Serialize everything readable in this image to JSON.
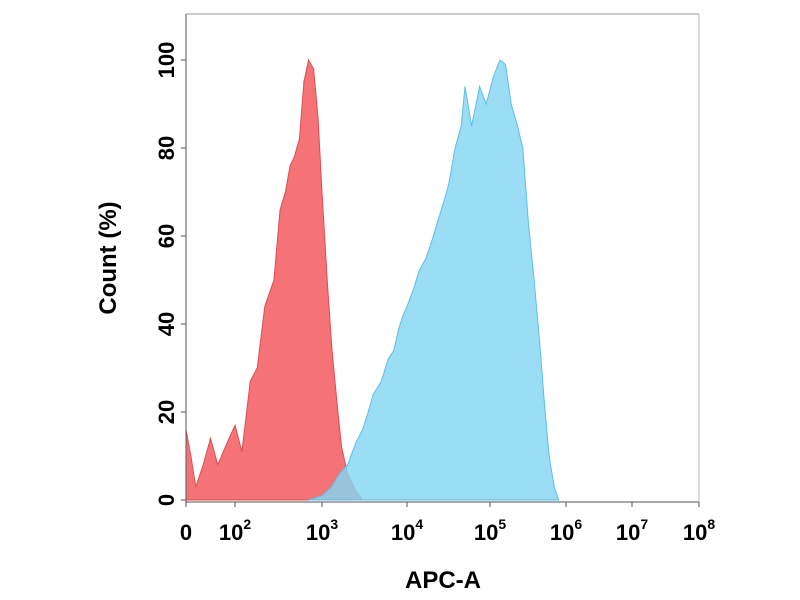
{
  "chart_data": {
    "type": "area",
    "title": "",
    "xlabel": "APC-A",
    "ylabel": "Count  (%)",
    "x_scale": "biexponential (linear near 0, logarithmic above 10^2)",
    "xlim": [
      0,
      100000000
    ],
    "ylim": [
      0,
      110
    ],
    "grid": false,
    "legend": "none",
    "x_ticks": [
      {
        "value": 0,
        "base": "0",
        "exp": ""
      },
      {
        "value": 100,
        "base": "10",
        "exp": "2"
      },
      {
        "value": 1000,
        "base": "10",
        "exp": "3"
      },
      {
        "value": 10000,
        "base": "10",
        "exp": "4"
      },
      {
        "value": 100000,
        "base": "10",
        "exp": "5"
      },
      {
        "value": 1000000,
        "base": "10",
        "exp": "6"
      },
      {
        "value": 10000000,
        "base": "10",
        "exp": "7"
      },
      {
        "value": 100000000,
        "base": "10",
        "exp": "8"
      }
    ],
    "y_ticks": [
      0,
      20,
      40,
      60,
      80,
      100
    ],
    "series": [
      {
        "color": "#f46a6f",
        "points": [
          [
            0,
            16
          ],
          [
            10,
            10
          ],
          [
            20,
            3
          ],
          [
            35,
            8
          ],
          [
            50,
            14
          ],
          [
            65,
            8
          ],
          [
            80,
            12
          ],
          [
            100,
            17
          ],
          [
            120,
            11
          ],
          [
            150,
            27
          ],
          [
            180,
            30
          ],
          [
            220,
            44
          ],
          [
            280,
            50
          ],
          [
            330,
            66
          ],
          [
            380,
            70
          ],
          [
            430,
            76
          ],
          [
            480,
            78
          ],
          [
            550,
            82
          ],
          [
            620,
            95
          ],
          [
            700,
            100
          ],
          [
            800,
            98
          ],
          [
            900,
            87
          ],
          [
            1000,
            70
          ],
          [
            1150,
            50
          ],
          [
            1300,
            35
          ],
          [
            1500,
            22
          ],
          [
            1700,
            12
          ],
          [
            2000,
            6
          ],
          [
            2500,
            2
          ],
          [
            3000,
            0
          ]
        ]
      },
      {
        "color": "#85d6f2",
        "points": [
          [
            700,
            0
          ],
          [
            1000,
            1
          ],
          [
            1300,
            3
          ],
          [
            1600,
            6
          ],
          [
            2000,
            8
          ],
          [
            2500,
            13
          ],
          [
            3000,
            16
          ],
          [
            3500,
            20
          ],
          [
            4000,
            24
          ],
          [
            5000,
            27
          ],
          [
            6000,
            32
          ],
          [
            7000,
            34
          ],
          [
            8000,
            39
          ],
          [
            9000,
            42
          ],
          [
            10000,
            44
          ],
          [
            12000,
            48
          ],
          [
            14000,
            52
          ],
          [
            17000,
            55
          ],
          [
            20000,
            59
          ],
          [
            24000,
            64
          ],
          [
            28000,
            68
          ],
          [
            32000,
            72
          ],
          [
            38000,
            80
          ],
          [
            45000,
            85
          ],
          [
            50000,
            94
          ],
          [
            60000,
            85
          ],
          [
            75000,
            94
          ],
          [
            90000,
            90
          ],
          [
            110000,
            96
          ],
          [
            135000,
            100
          ],
          [
            160000,
            99
          ],
          [
            190000,
            90
          ],
          [
            230000,
            85
          ],
          [
            270000,
            80
          ],
          [
            320000,
            63
          ],
          [
            380000,
            50
          ],
          [
            450000,
            36
          ],
          [
            520000,
            22
          ],
          [
            600000,
            10
          ],
          [
            700000,
            3
          ],
          [
            800000,
            0
          ]
        ]
      }
    ]
  }
}
